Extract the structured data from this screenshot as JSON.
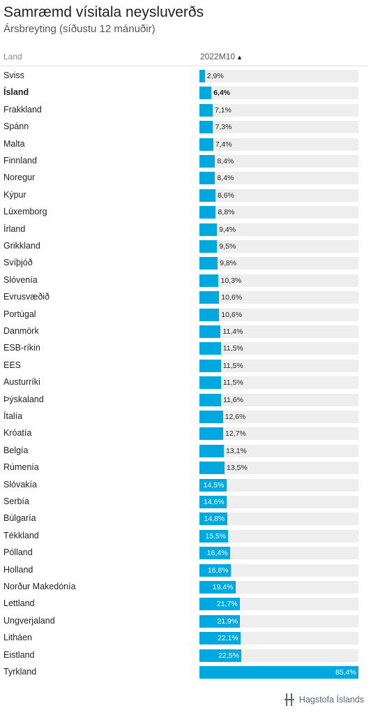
{
  "title": "Samræmd vísitala neysluverðs",
  "subtitle": "Ársbreyting (síðustu 12 mánuðir)",
  "header": {
    "land_label": "Land",
    "period_label": "2022M10",
    "sort_indicator": "▲"
  },
  "brand": {
    "name": "Hagstofa Íslands",
    "bar_color": "#00a8e0",
    "track_color": "#eeeeee"
  },
  "chart_data": {
    "type": "bar",
    "orientation": "horizontal",
    "title": "Samræmd vísitala neysluverðs",
    "subtitle": "Ársbreyting (síðustu 12 mánuðir)",
    "series_name": "2022M10",
    "xlim": [
      0,
      85.4
    ],
    "highlight": "Ísland",
    "categories": [
      "Sviss",
      "Ísland",
      "Frakkland",
      "Spánn",
      "Malta",
      "Finnland",
      "Noregur",
      "Kýpur",
      "Lúxemborg",
      "Írland",
      "Grikkland",
      "Svíþjóð",
      "Slóvenía",
      "Evrusvæðið",
      "Portúgal",
      "Danmörk",
      "ESB-ríkin",
      "EES",
      "Austurríki",
      "Þýskaland",
      "Ítalía",
      "Króatía",
      "Belgía",
      "Rúmenía",
      "Slóvakía",
      "Serbía",
      "Búlgaría",
      "Tékkland",
      "Pólland",
      "Holland",
      "Norður Makedónía",
      "Lettland",
      "Ungverjaland",
      "Litháen",
      "Eistland",
      "Tyrkland"
    ],
    "values": [
      2.9,
      6.4,
      7.1,
      7.3,
      7.4,
      8.4,
      8.4,
      8.6,
      8.8,
      9.4,
      9.5,
      9.8,
      10.3,
      10.6,
      10.6,
      11.4,
      11.5,
      11.5,
      11.5,
      11.6,
      12.6,
      12.7,
      13.1,
      13.5,
      14.5,
      14.6,
      14.8,
      15.5,
      16.4,
      16.8,
      19.4,
      21.7,
      21.9,
      22.1,
      22.5,
      85.4
    ],
    "labels": [
      "2,9%",
      "6,4%",
      "7,1%",
      "7,3%",
      "7,4%",
      "8,4%",
      "8,4%",
      "8,6%",
      "8,8%",
      "9,4%",
      "9,5%",
      "9,8%",
      "10,3%",
      "10,6%",
      "10,6%",
      "11,4%",
      "11,5%",
      "11,5%",
      "11,5%",
      "11,6%",
      "12,6%",
      "12,7%",
      "13,1%",
      "13,5%",
      "14,5%",
      "14,6%",
      "14,8%",
      "15,5%",
      "16,4%",
      "16,8%",
      "19,4%",
      "21,7%",
      "21,9%",
      "22,1%",
      "22,5%",
      "85,4%"
    ]
  }
}
